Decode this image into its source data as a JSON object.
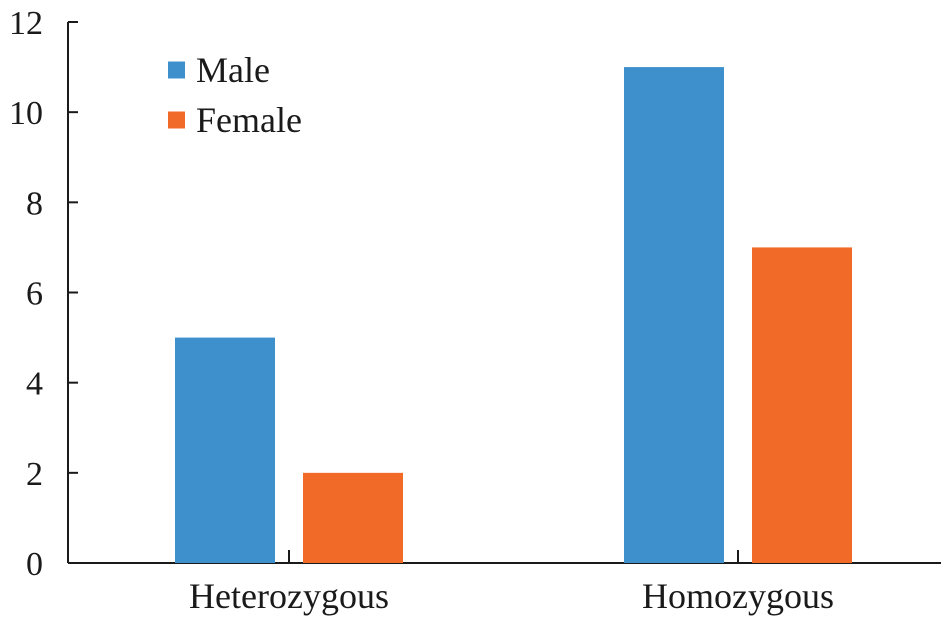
{
  "chart_data": {
    "type": "bar",
    "categories": [
      "Heterozygous",
      "Homozygous"
    ],
    "series": [
      {
        "name": "Male",
        "values": [
          5,
          11
        ],
        "color": "#3d90cc"
      },
      {
        "name": "Female",
        "values": [
          2,
          7
        ],
        "color": "#f26a27"
      }
    ],
    "ylim": [
      0,
      12
    ],
    "yticks": [
      0,
      2,
      4,
      6,
      8,
      10,
      12
    ],
    "grid": false,
    "legend_position": "top-left"
  }
}
